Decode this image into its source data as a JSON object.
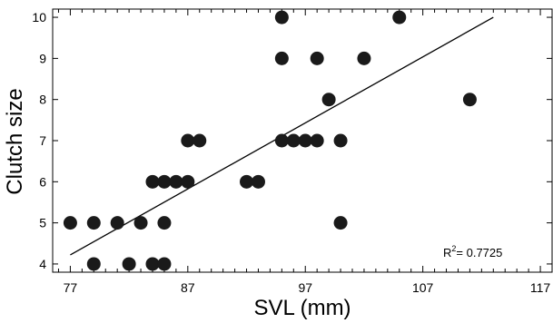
{
  "chart_data": {
    "type": "scatter",
    "title": "",
    "xlabel": "SVL (mm)",
    "ylabel": "Clutch size",
    "xlim": [
      75.5,
      118
    ],
    "ylim": [
      3.8,
      10.2
    ],
    "x_ticks": [
      77,
      87,
      97,
      107,
      117
    ],
    "y_ticks": [
      4,
      5,
      6,
      7,
      8,
      9,
      10
    ],
    "grid": false,
    "legend": "none",
    "marker_color": "#1a1a1a",
    "line_color": "#000000",
    "series": [
      {
        "points": [
          {
            "x": 77,
            "y": 5
          },
          {
            "x": 79,
            "y": 4
          },
          {
            "x": 79,
            "y": 5
          },
          {
            "x": 81,
            "y": 5
          },
          {
            "x": 82,
            "y": 4
          },
          {
            "x": 83,
            "y": 5
          },
          {
            "x": 84,
            "y": 4
          },
          {
            "x": 84,
            "y": 6
          },
          {
            "x": 85,
            "y": 4
          },
          {
            "x": 85,
            "y": 5
          },
          {
            "x": 85,
            "y": 6
          },
          {
            "x": 86,
            "y": 6
          },
          {
            "x": 87,
            "y": 6
          },
          {
            "x": 87,
            "y": 7
          },
          {
            "x": 88,
            "y": 7
          },
          {
            "x": 92,
            "y": 6
          },
          {
            "x": 93,
            "y": 6
          },
          {
            "x": 95,
            "y": 7
          },
          {
            "x": 95,
            "y": 9
          },
          {
            "x": 95,
            "y": 10
          },
          {
            "x": 96,
            "y": 7
          },
          {
            "x": 97,
            "y": 7
          },
          {
            "x": 98,
            "y": 7
          },
          {
            "x": 98,
            "y": 9
          },
          {
            "x": 99,
            "y": 8
          },
          {
            "x": 100,
            "y": 5
          },
          {
            "x": 100,
            "y": 7
          },
          {
            "x": 102,
            "y": 9
          },
          {
            "x": 105,
            "y": 10
          },
          {
            "x": 111,
            "y": 8
          }
        ]
      }
    ],
    "trendline": {
      "x1": 77,
      "y1": 4.22,
      "x2": 113,
      "y2": 10.0
    },
    "annotation": {
      "text_base": "R",
      "text_sup": "2",
      "text_value": "= 0.7725"
    }
  }
}
